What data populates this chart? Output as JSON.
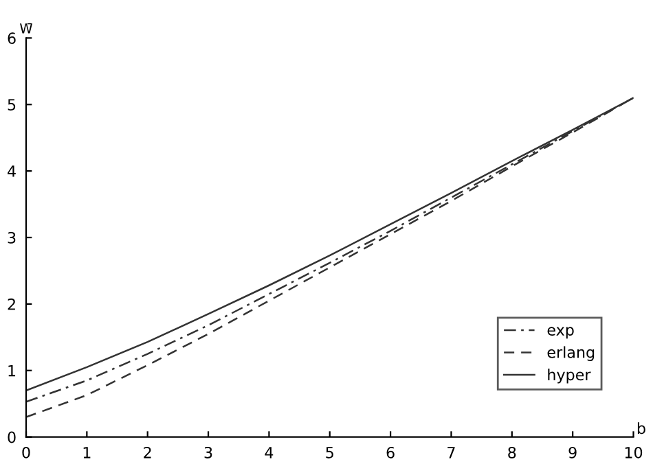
{
  "chart_data": {
    "type": "line",
    "xlabel": "b",
    "ylabel": "W̄",
    "x": [
      0,
      1,
      2,
      3,
      4,
      5,
      6,
      7,
      8,
      9,
      10
    ],
    "series": [
      {
        "name": "exp",
        "color": "#333333",
        "line_style": "dashdot",
        "values": [
          0.53,
          0.85,
          1.25,
          1.68,
          2.15,
          2.62,
          3.1,
          3.6,
          4.1,
          4.6,
          5.1
        ]
      },
      {
        "name": "erlang",
        "color": "#333333",
        "line_style": "dashed",
        "values": [
          0.3,
          0.63,
          1.08,
          1.55,
          2.05,
          2.55,
          3.05,
          3.55,
          4.07,
          4.58,
          5.1
        ]
      },
      {
        "name": "hyper",
        "color": "#333333",
        "line_style": "solid",
        "values": [
          0.7,
          1.05,
          1.43,
          1.85,
          2.28,
          2.73,
          3.2,
          3.67,
          4.15,
          4.62,
          5.1
        ]
      }
    ],
    "xlim": [
      0,
      10
    ],
    "ylim": [
      0,
      6
    ],
    "xticks": [
      0,
      1,
      2,
      3,
      4,
      5,
      6,
      7,
      8,
      9,
      10
    ],
    "yticks": [
      0,
      1,
      2,
      3,
      4,
      5,
      6
    ],
    "grid": false,
    "legend": "bottom right",
    "marker": "none"
  }
}
